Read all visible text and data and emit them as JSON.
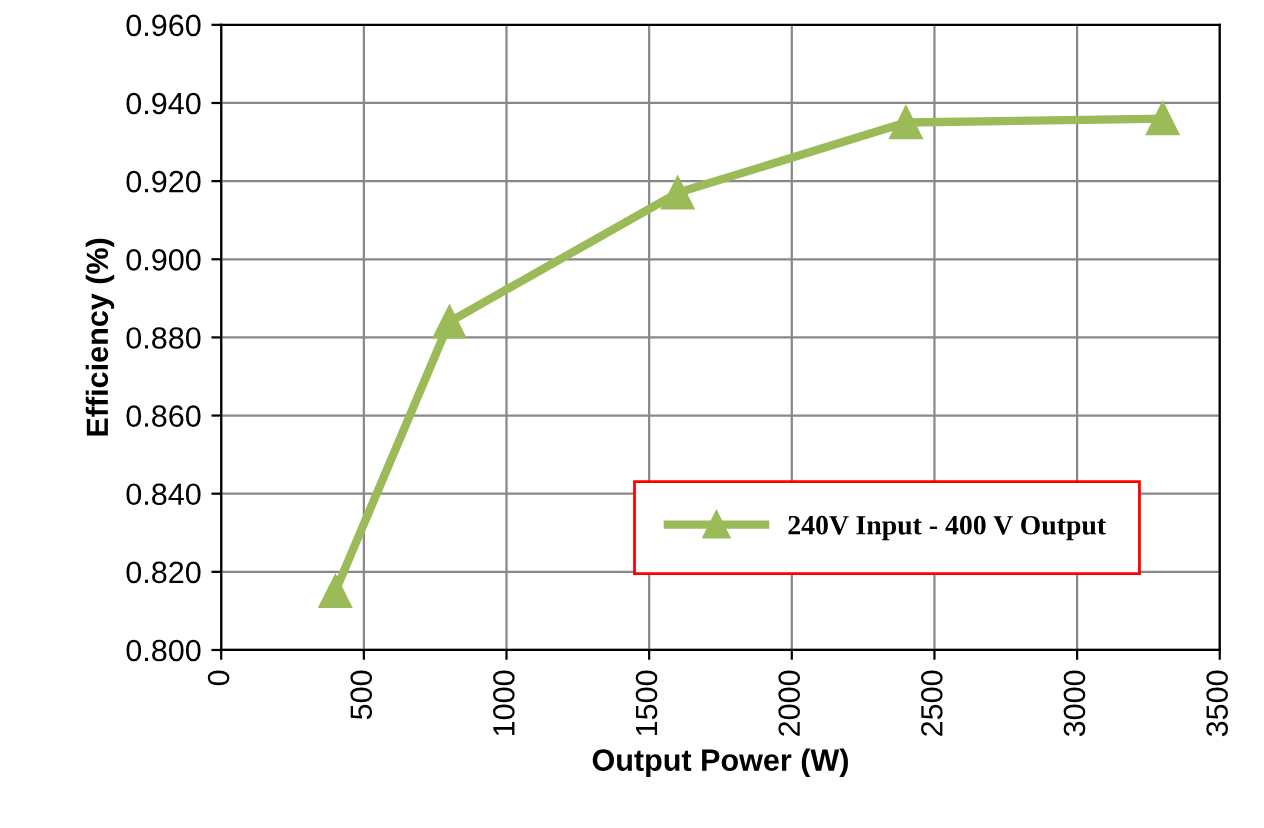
{
  "chart_data": {
    "type": "line",
    "xlabel": "Output Power (W)",
    "ylabel": "Efficiency (%)",
    "x": [
      400,
      800,
      1600,
      2400,
      3300
    ],
    "series": [
      {
        "name": "240V Input - 400 V Output",
        "color": "#9bbb59",
        "values": [
          0.815,
          0.884,
          0.917,
          0.935,
          0.936
        ]
      }
    ],
    "xlim": [
      0,
      3500
    ],
    "xticks": [
      0,
      500,
      1000,
      1500,
      2000,
      2500,
      3000,
      3500
    ],
    "ylim": [
      0.8,
      0.96
    ],
    "yticks": [
      {
        "value": 0.8,
        "label": "0.800"
      },
      {
        "value": 0.82,
        "label": "0.820"
      },
      {
        "value": 0.84,
        "label": "0.840"
      },
      {
        "value": 0.86,
        "label": "0.860"
      },
      {
        "value": 0.88,
        "label": "0.880"
      },
      {
        "value": 0.9,
        "label": "0.900"
      },
      {
        "value": 0.92,
        "label": "0.920"
      },
      {
        "value": 0.94,
        "label": "0.940"
      },
      {
        "value": 0.96,
        "label": "0.960"
      }
    ],
    "grid": true,
    "legend": "bottom right",
    "marker": "triangle",
    "line_style": "solid"
  }
}
